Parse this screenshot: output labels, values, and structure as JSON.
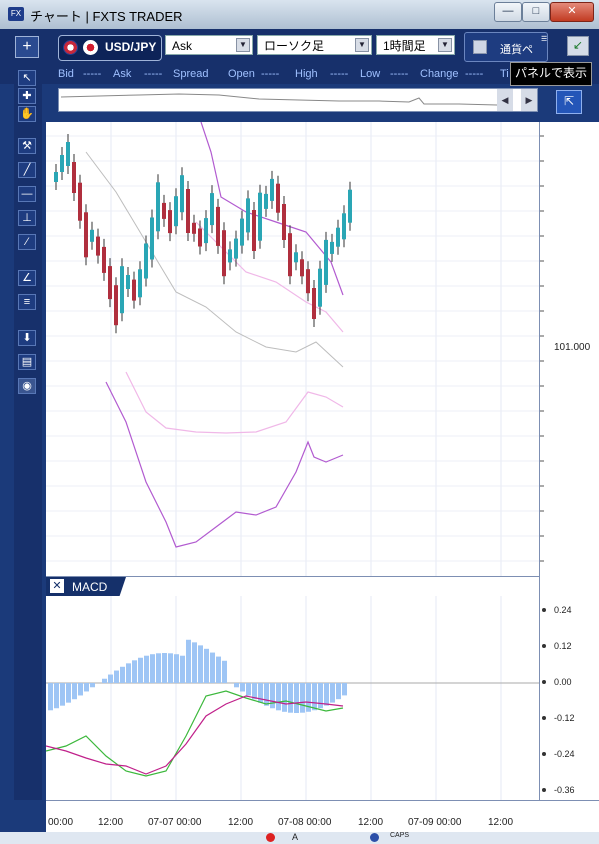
{
  "window": {
    "title": "チャート | FXTS TRADER",
    "app_icon": "FX"
  },
  "toolbar": {
    "pair": "USD/JPY",
    "price_type": "Ask",
    "chart_type": "ローソク足",
    "timeframe": "1時間足",
    "currency_panel": "通貨ペ",
    "tooltip": "パネルで表示"
  },
  "quotes": {
    "labels": [
      "Bid",
      "Ask",
      "Spread",
      "Open",
      "High",
      "Low",
      "Change",
      "Ti"
    ],
    "placeholder": "-----"
  },
  "price_axis": {
    "label": "101.000"
  },
  "macd": {
    "label": "MACD",
    "ticks": [
      "0.24",
      "0.12",
      "0.00",
      "-0.12",
      "-0.24",
      "-0.36"
    ]
  },
  "time_axis": {
    "ticks": [
      "00:00",
      "12:00",
      "07-07 00:00",
      "12:00",
      "07-08 00:00",
      "12:00",
      "07-09 00:00",
      "12:00"
    ]
  },
  "taskbar": {
    "caps": "CAPS"
  },
  "colors": {
    "up": "#2aa6b5",
    "down": "#b02f3e",
    "band_outer": "#b25bd0",
    "band_inner": "#f0b8e8",
    "ma": "#bdbdbd",
    "macd_line": "#c0208a",
    "signal_line": "#3cb83c",
    "histogram": "#9ec5f5",
    "frame": "#1b3a7a"
  }
}
